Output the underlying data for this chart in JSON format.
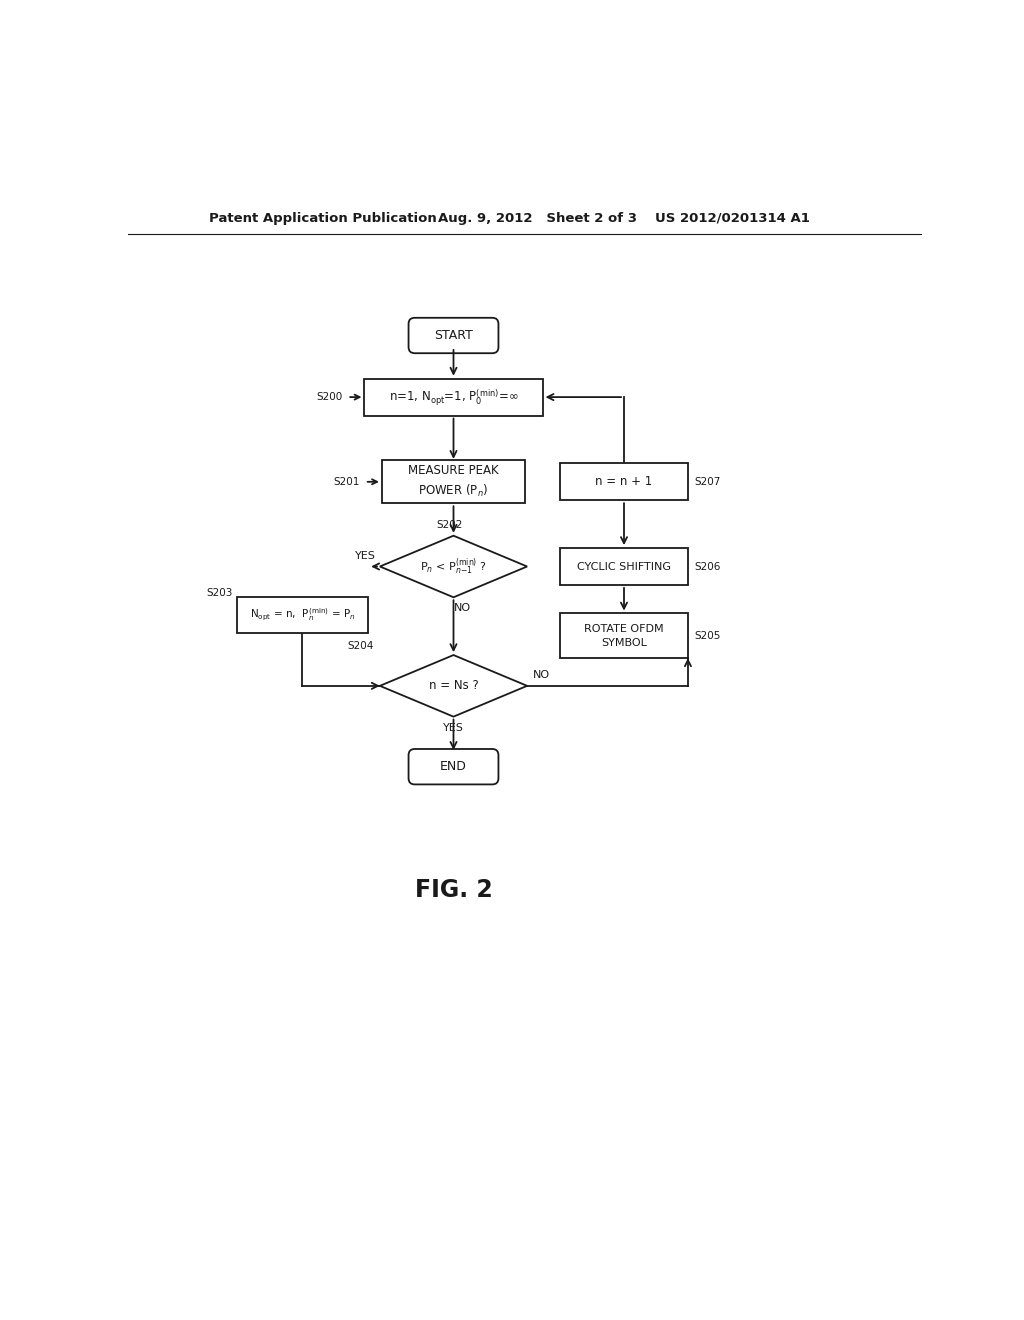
{
  "bg_color": "#ffffff",
  "line_color": "#1a1a1a",
  "header_left": "Patent Application Publication",
  "header_mid": "Aug. 9, 2012   Sheet 2 of 3",
  "header_right": "US 2012/0201314 A1",
  "fig_label": "FIG. 2",
  "font_size_header": 9.5,
  "font_size_node": 8.5,
  "font_size_fig": 17,
  "font_size_step": 7.5
}
